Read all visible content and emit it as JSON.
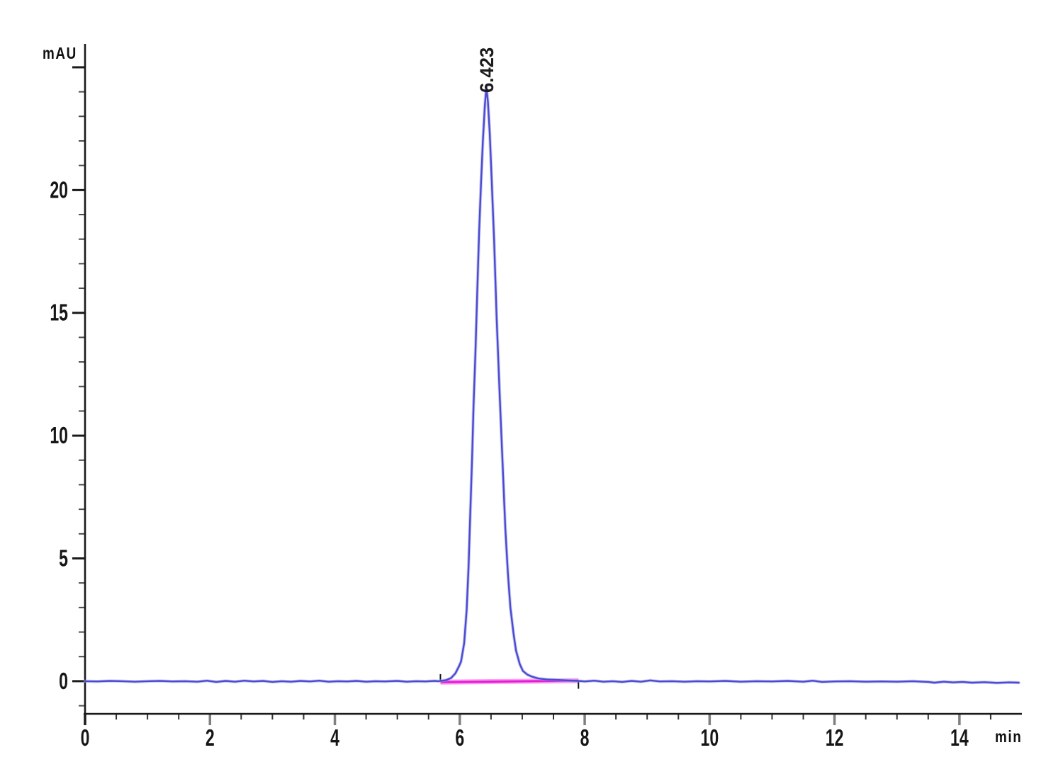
{
  "chart_data": {
    "type": "line",
    "title": "",
    "x_axis": {
      "label": "min",
      "range": [
        0,
        15.0
      ],
      "major_ticks": [
        0,
        2,
        4,
        6,
        8,
        10,
        12,
        14
      ],
      "major_tick_labels": [
        "0",
        "2",
        "4",
        "6",
        "8",
        "10",
        "12",
        "14"
      ],
      "minor_tick_step": 0.5,
      "minor_tick_min": 0.5,
      "minor_tick_max": 14.5
    },
    "y_axis": {
      "label": "mAU",
      "range": [
        -1.33,
        25.95
      ],
      "major_ticks": [
        0,
        5,
        10,
        15,
        20,
        25
      ],
      "major_tick_labels": [
        "0",
        "5",
        "10",
        "15",
        "20",
        ""
      ],
      "minor_tick_step": 1,
      "minor_tick_min": -1,
      "minor_tick_max": 25
    },
    "grid": false,
    "legend": false,
    "colors": {
      "axis": "#1a1a1a",
      "minor_tick": "#4a4a4a",
      "major_tick_x": "#7f7f7f",
      "trace": "#4b4bd2",
      "trace_glow": "#a3a3e8",
      "integration_baseline": "#e81ad8",
      "integration_glow": "#f6a0ee"
    },
    "peaks": [
      {
        "label": "6.423",
        "retention_time_min": 6.423,
        "height_mAU": 24.2
      }
    ],
    "integration": {
      "baseline": {
        "start": [
          5.69,
          -0.04
        ],
        "end": [
          7.9,
          0.02
        ]
      },
      "delimiters": [
        {
          "t": 5.69,
          "v": 0.0,
          "dir": "up"
        },
        {
          "t": 7.9,
          "v": -0.02,
          "dir": "down"
        }
      ]
    },
    "series": [
      {
        "name": "trace",
        "points": [
          [
            0.0,
            0.0
          ],
          [
            0.2,
            -0.01
          ],
          [
            0.4,
            0.01
          ],
          [
            0.6,
            0.0
          ],
          [
            0.8,
            -0.02
          ],
          [
            1.0,
            0.0
          ],
          [
            1.2,
            0.01
          ],
          [
            1.4,
            -0.01
          ],
          [
            1.6,
            0.0
          ],
          [
            1.8,
            -0.02
          ],
          [
            1.95,
            0.02
          ],
          [
            2.1,
            -0.03
          ],
          [
            2.25,
            0.01
          ],
          [
            2.4,
            -0.02
          ],
          [
            2.55,
            0.02
          ],
          [
            2.7,
            -0.01
          ],
          [
            2.85,
            0.01
          ],
          [
            3.0,
            -0.03
          ],
          [
            3.15,
            0.0
          ],
          [
            3.3,
            -0.02
          ],
          [
            3.45,
            0.01
          ],
          [
            3.6,
            -0.01
          ],
          [
            3.75,
            0.02
          ],
          [
            3.9,
            -0.02
          ],
          [
            4.05,
            0.0
          ],
          [
            4.2,
            -0.01
          ],
          [
            4.35,
            0.01
          ],
          [
            4.5,
            -0.02
          ],
          [
            4.65,
            0.0
          ],
          [
            4.8,
            -0.01
          ],
          [
            5.0,
            0.01
          ],
          [
            5.15,
            -0.02
          ],
          [
            5.3,
            0.0
          ],
          [
            5.45,
            -0.01
          ],
          [
            5.6,
            0.01
          ],
          [
            5.66,
            0.0
          ],
          [
            5.69,
            0.01
          ],
          [
            5.78,
            0.04
          ],
          [
            5.86,
            0.13
          ],
          [
            5.93,
            0.32
          ],
          [
            5.99,
            0.62
          ],
          [
            6.02,
            0.8
          ],
          [
            6.07,
            1.55
          ],
          [
            6.11,
            2.9
          ],
          [
            6.14,
            4.6
          ],
          [
            6.17,
            7.0
          ],
          [
            6.2,
            9.3
          ],
          [
            6.22,
            11.2
          ],
          [
            6.25,
            13.3
          ],
          [
            6.28,
            15.9
          ],
          [
            6.31,
            18.3
          ],
          [
            6.34,
            20.3
          ],
          [
            6.37,
            22.0
          ],
          [
            6.4,
            23.4
          ],
          [
            6.425,
            24.2
          ],
          [
            6.45,
            23.6
          ],
          [
            6.48,
            22.3
          ],
          [
            6.51,
            20.5
          ],
          [
            6.55,
            17.9
          ],
          [
            6.59,
            14.8
          ],
          [
            6.64,
            11.6
          ],
          [
            6.69,
            8.6
          ],
          [
            6.73,
            6.2
          ],
          [
            6.77,
            4.4
          ],
          [
            6.81,
            3.0
          ],
          [
            6.86,
            1.95
          ],
          [
            6.9,
            1.25
          ],
          [
            6.96,
            0.7
          ],
          [
            7.01,
            0.42
          ],
          [
            7.08,
            0.27
          ],
          [
            7.15,
            0.19
          ],
          [
            7.26,
            0.11
          ],
          [
            7.4,
            0.07
          ],
          [
            7.55,
            0.05
          ],
          [
            7.72,
            0.03
          ],
          [
            7.9,
            0.01
          ],
          [
            8.0,
            -0.01
          ],
          [
            8.15,
            0.02
          ],
          [
            8.3,
            -0.02
          ],
          [
            8.45,
            0.0
          ],
          [
            8.6,
            -0.03
          ],
          [
            8.75,
            0.01
          ],
          [
            8.9,
            -0.02
          ],
          [
            9.05,
            0.03
          ],
          [
            9.2,
            -0.01
          ],
          [
            9.4,
            0.0
          ],
          [
            9.6,
            -0.02
          ],
          [
            9.8,
            0.0
          ],
          [
            10.0,
            -0.01
          ],
          [
            10.25,
            0.01
          ],
          [
            10.5,
            -0.02
          ],
          [
            10.75,
            0.0
          ],
          [
            11.0,
            -0.01
          ],
          [
            11.25,
            0.01
          ],
          [
            11.5,
            -0.02
          ],
          [
            11.65,
            0.02
          ],
          [
            11.8,
            -0.03
          ],
          [
            12.0,
            -0.01
          ],
          [
            12.25,
            0.0
          ],
          [
            12.5,
            -0.02
          ],
          [
            12.75,
            -0.01
          ],
          [
            13.0,
            -0.02
          ],
          [
            13.25,
            0.0
          ],
          [
            13.5,
            -0.03
          ],
          [
            13.6,
            -0.06
          ],
          [
            13.75,
            -0.02
          ],
          [
            13.9,
            -0.05
          ],
          [
            14.05,
            -0.03
          ],
          [
            14.2,
            -0.06
          ],
          [
            14.4,
            -0.04
          ],
          [
            14.6,
            -0.07
          ],
          [
            14.8,
            -0.05
          ],
          [
            14.95,
            -0.06
          ]
        ]
      }
    ]
  }
}
